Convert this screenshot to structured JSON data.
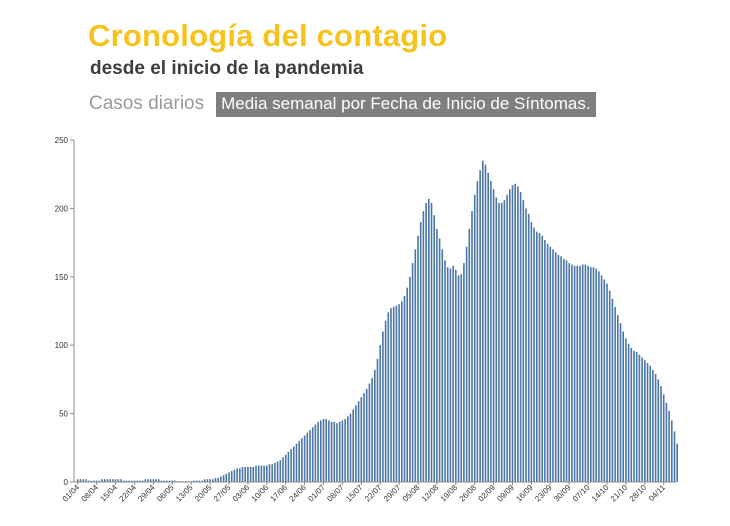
{
  "header": {
    "title": "Cronología del contagio",
    "subtitle": "desde el inicio de la pandemia",
    "series_label": "Casos diarios",
    "metric_label": "Media semanal por Fecha de Inicio de Síntomas."
  },
  "colors": {
    "bar": "#4a76a8",
    "title": "#f6c21c",
    "axis": "#8c8c8c"
  },
  "chart_data": {
    "type": "bar",
    "title": "",
    "xlabel": "",
    "ylabel": "",
    "ylim": [
      0,
      250
    ],
    "yticks": [
      0,
      50,
      100,
      150,
      200,
      250
    ],
    "grid": false,
    "legend": "none",
    "x_tick_labels": [
      "01/04",
      "08/04",
      "15/04",
      "22/04",
      "29/04",
      "06/05",
      "13/05",
      "20/05",
      "27/05",
      "03/06",
      "10/06",
      "17/06",
      "24/06",
      "01/07",
      "08/07",
      "15/07",
      "22/07",
      "29/07",
      "05/08",
      "12/08",
      "19/08",
      "26/08",
      "02/09",
      "09/09",
      "16/09",
      "23/09",
      "30/09",
      "07/10",
      "14/10",
      "21/10",
      "28/10",
      "04/11"
    ],
    "start_date": "2020-04-01",
    "values": [
      2,
      2,
      2,
      2,
      1,
      1,
      1,
      1,
      1,
      2,
      2,
      2,
      2,
      2,
      2,
      2,
      2,
      1,
      1,
      1,
      1,
      1,
      1,
      1,
      1,
      2,
      2,
      2,
      2,
      2,
      2,
      1,
      1,
      1,
      1,
      1,
      1,
      0,
      0,
      0,
      0,
      0,
      0,
      1,
      1,
      1,
      1,
      2,
      2,
      2,
      2,
      3,
      3,
      4,
      5,
      6,
      7,
      8,
      9,
      10,
      10,
      11,
      11,
      11,
      11,
      11,
      12,
      12,
      12,
      12,
      12,
      13,
      13,
      14,
      15,
      16,
      18,
      20,
      22,
      24,
      26,
      28,
      30,
      32,
      34,
      36,
      38,
      40,
      42,
      44,
      45,
      46,
      46,
      45,
      44,
      44,
      43,
      44,
      45,
      46,
      48,
      50,
      53,
      56,
      59,
      62,
      65,
      68,
      72,
      76,
      82,
      90,
      100,
      110,
      118,
      124,
      127,
      128,
      129,
      130,
      132,
      136,
      142,
      150,
      160,
      170,
      180,
      190,
      198,
      204,
      207,
      204,
      195,
      185,
      178,
      170,
      162,
      157,
      156,
      158,
      155,
      151,
      152,
      160,
      172,
      185,
      198,
      210,
      220,
      228,
      235,
      232,
      226,
      220,
      214,
      208,
      204,
      204,
      206,
      210,
      214,
      217,
      218,
      216,
      212,
      206,
      200,
      196,
      190,
      186,
      183,
      182,
      180,
      177,
      174,
      172,
      170,
      168,
      166,
      165,
      163,
      162,
      160,
      159,
      158,
      158,
      158,
      159,
      159,
      158,
      157,
      157,
      156,
      154,
      151,
      148,
      145,
      140,
      134,
      128,
      122,
      116,
      110,
      105,
      101,
      98,
      96,
      95,
      93,
      91,
      89,
      87,
      85,
      82,
      79,
      75,
      70,
      64,
      58,
      52,
      45,
      37,
      28
    ]
  }
}
